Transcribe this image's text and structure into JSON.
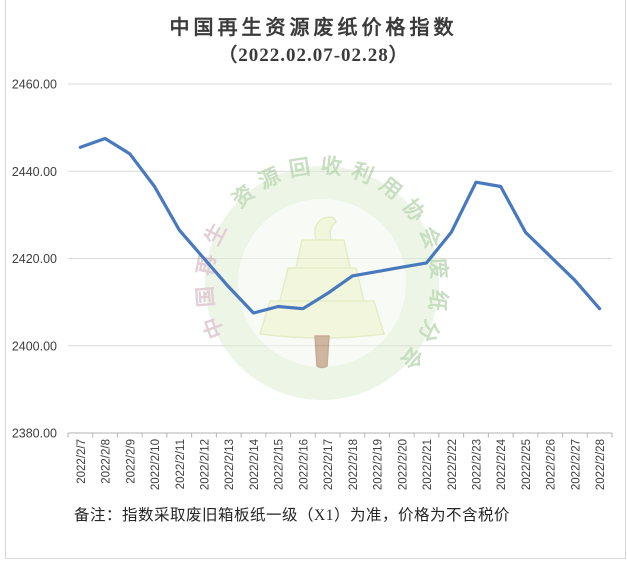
{
  "page": {
    "note": "备注：指数采取废旧箱板纸一级（X1）为准，价格为不含税价"
  },
  "watermark": {
    "ring_text_left": "中国再生",
    "ring_text_rest": "资源回收利用协会废纸分会"
  },
  "chart_data": {
    "type": "line",
    "title": "中国再生资源废纸价格指数",
    "subtitle": "（2022.02.07-02.28）",
    "x": [
      "2022/2/7",
      "2022/2/8",
      "2022/2/9",
      "2022/2/10",
      "2022/2/11",
      "2022/2/12",
      "2022/2/13",
      "2022/2/14",
      "2022/2/15",
      "2022/2/16",
      "2022/2/17",
      "2022/2/18",
      "2022/2/19",
      "2022/2/20",
      "2022/2/21",
      "2022/2/22",
      "2022/2/23",
      "2022/2/24",
      "2022/2/25",
      "2022/2/26",
      "2022/2/27",
      "2022/2/28"
    ],
    "series": [
      {
        "name": "废纸价格指数",
        "values": [
          2445.5,
          2447.5,
          2444.0,
          2436.5,
          2426.5,
          2420.0,
          2413.5,
          2407.5,
          2409.0,
          2408.5,
          2412.0,
          2416.0,
          2417.0,
          2418.0,
          2419.0,
          2426.0,
          2437.5,
          2436.5,
          2426.0,
          2420.5,
          2415.0,
          2408.5
        ]
      }
    ],
    "ylim": [
      2380,
      2460
    ],
    "y_ticks": [
      2460,
      2440,
      2420,
      2400,
      2380
    ],
    "y_tick_decimals": 2,
    "grid": true,
    "legend_position": "none",
    "line_color": "#4878BE",
    "grid_color": "#d9d9d9",
    "axis_color": "#b3b3b3",
    "tick_label_color": "#3f3f3f"
  }
}
